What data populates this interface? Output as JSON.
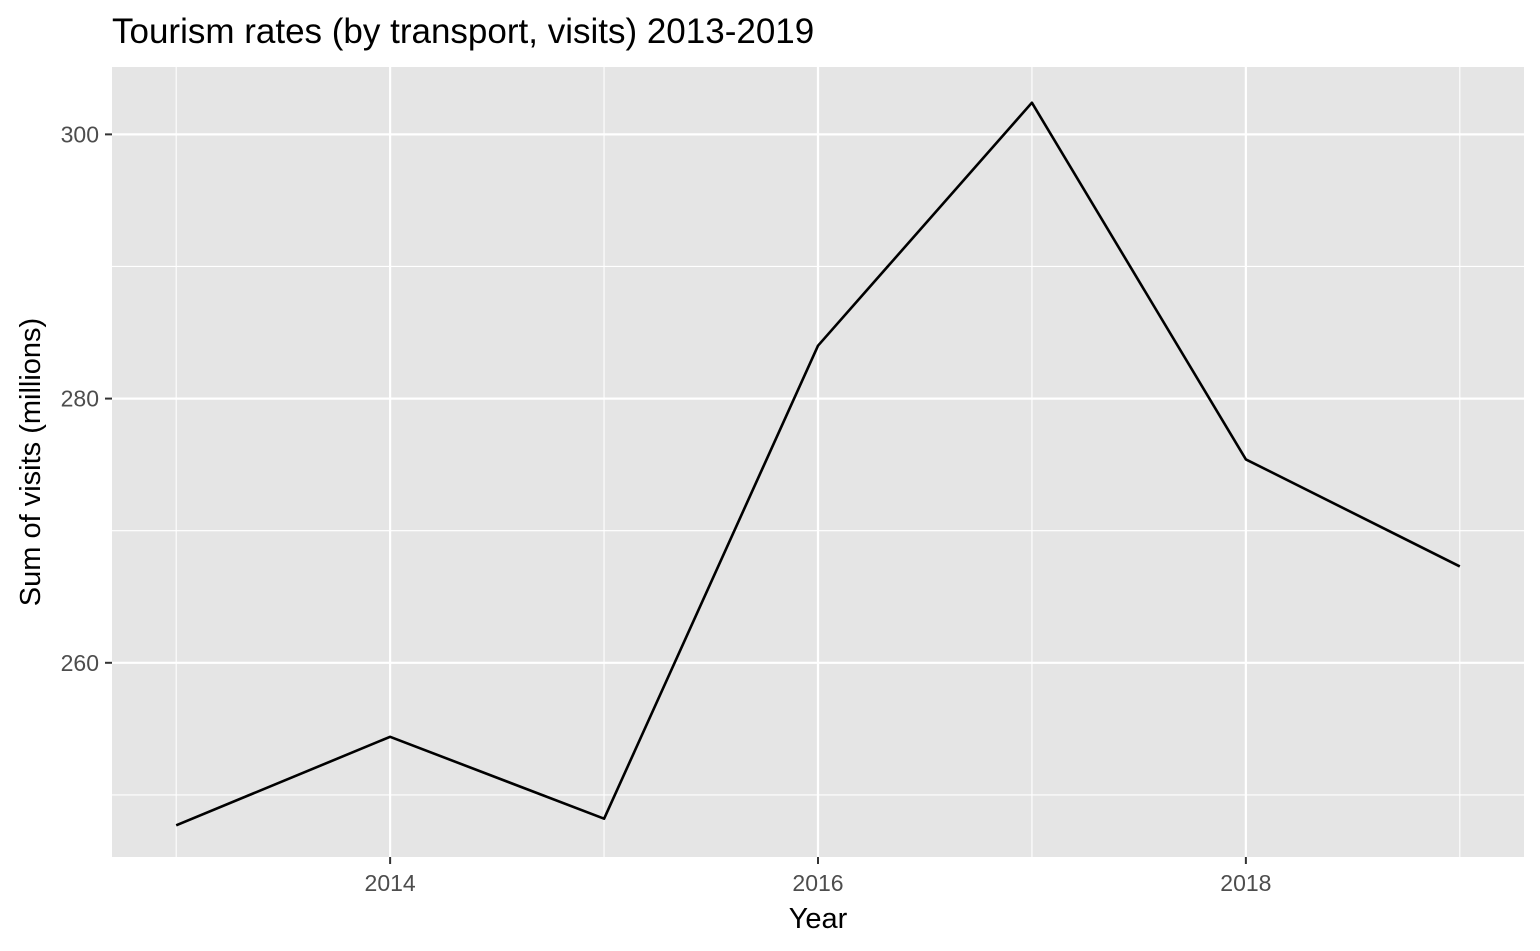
{
  "chart_data": {
    "type": "line",
    "title": "Tourism rates (by transport, visits) 2013-2019",
    "xlabel": "Year",
    "ylabel": "Sum of visits (millions)",
    "x": [
      2013,
      2014,
      2015,
      2016,
      2017,
      2018,
      2019
    ],
    "series": [
      {
        "values": [
          247.7,
          254.4,
          248.2,
          284.0,
          302.4,
          275.4,
          267.3
        ]
      }
    ],
    "xlim": [
      2012.7,
      2019.3
    ],
    "ylim": [
      245.3,
      305.1
    ],
    "x_ticks": [
      2014,
      2016,
      2018
    ],
    "x_tick_labels": [
      "2014",
      "2016",
      "2018"
    ],
    "x_minor_ticks": [
      2013,
      2015,
      2017,
      2019
    ],
    "y_ticks": [
      260,
      280,
      300
    ],
    "y_tick_labels": [
      "260",
      "280",
      "300"
    ],
    "y_minor_ticks": [
      250,
      270,
      290
    ],
    "grid": true,
    "legend": "none",
    "colors": {
      "panel": "#e5e5e5",
      "grid": "#ffffff",
      "line": "#000000",
      "tick_label": "#4d4d4d",
      "tick_mark": "#333333"
    }
  }
}
